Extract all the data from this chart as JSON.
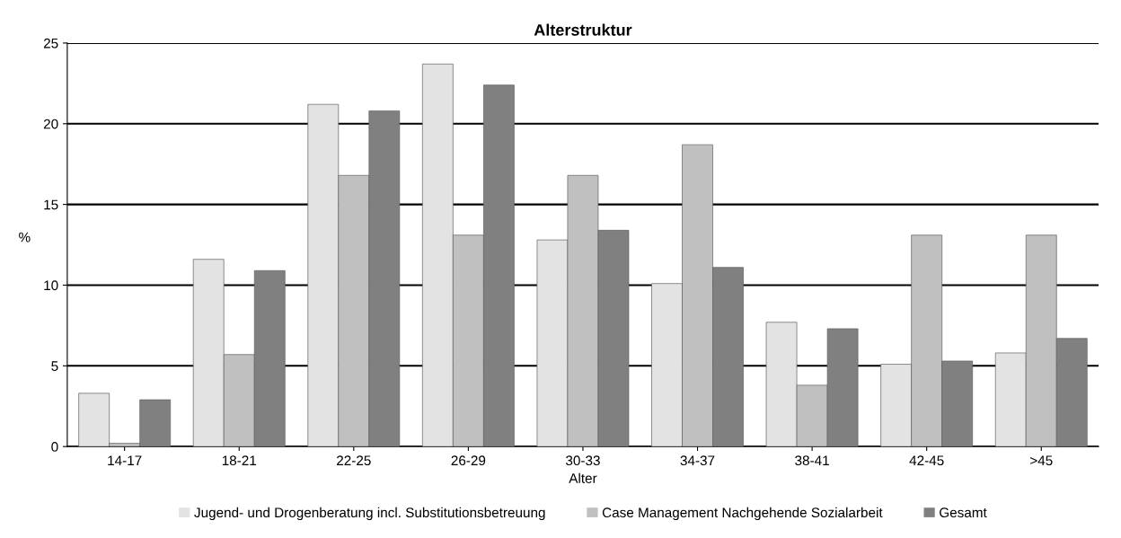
{
  "chart_data": {
    "type": "bar",
    "title": "Alterstruktur",
    "xlabel": "Alter",
    "ylabel": "%",
    "categories": [
      "14-17",
      "18-21",
      "22-25",
      "26-29",
      "30-33",
      "34-37",
      "38-41",
      "42-45",
      ">45"
    ],
    "series": [
      {
        "name": "Jugend- und Drogenberatung incl. Substitutionsbetreuung",
        "color": "#e3e3e3",
        "values": [
          3.3,
          11.6,
          21.2,
          23.7,
          12.8,
          10.1,
          7.7,
          5.1,
          5.8
        ]
      },
      {
        "name": "Case Management Nachgehende Sozialarbeit",
        "color": "#c0c0c0",
        "values": [
          0.2,
          5.7,
          16.8,
          13.1,
          16.8,
          18.7,
          3.8,
          13.1,
          13.1
        ]
      },
      {
        "name": "Gesamt",
        "color": "#808080",
        "values": [
          2.9,
          10.9,
          20.8,
          22.4,
          13.4,
          11.1,
          7.3,
          5.3,
          6.7
        ]
      }
    ],
    "ylim": [
      0,
      25
    ],
    "yticks": [
      0,
      5,
      10,
      15,
      20,
      25
    ],
    "grid": "y",
    "legend": "bottom"
  }
}
